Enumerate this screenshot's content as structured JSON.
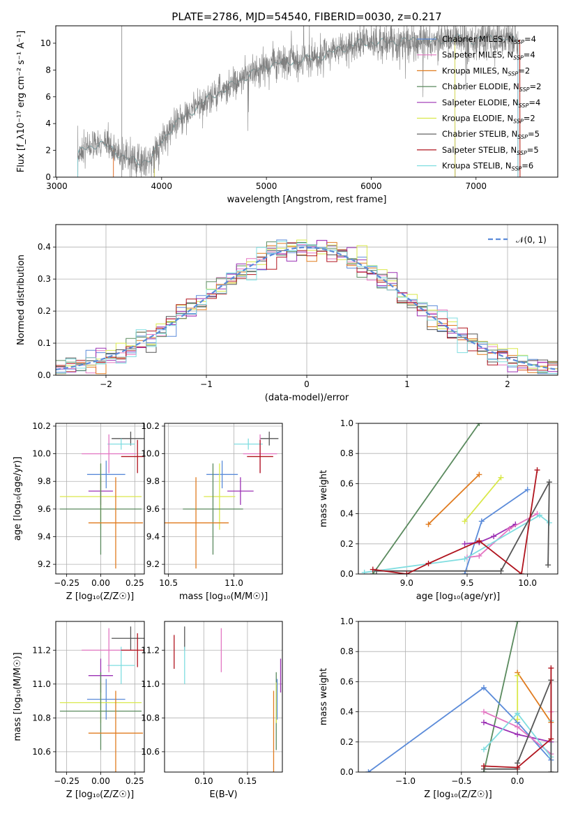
{
  "figure_title": "PLATE=2786, MJD=54540, FIBERID=0030, z=0.217",
  "colors": {
    "blue": "#5b8bd9",
    "pink": "#e377c2",
    "orange": "#e07b1f",
    "green": "#5a8a5e",
    "purple": "#9b30b4",
    "yellow": "#d9e84a",
    "gray": "#555555",
    "red": "#b0141e",
    "cyan": "#7fdde0",
    "normal": "#5b8bd9",
    "grid": "#b0b0b0",
    "spectrum": "#7f7f7f"
  },
  "chart_data": [
    {
      "id": "spectrum",
      "type": "line",
      "title": "PLATE=2786, MJD=54540, FIBERID=0030, z=0.217",
      "xlabel": "wavelength [Angstrom, rest frame]",
      "ylabel": "Flux [f_λ10⁻¹⁷ erg cm⁻² s⁻¹ A⁻¹]",
      "xlim": [
        2990,
        7780
      ],
      "ylim": [
        0,
        11.3
      ],
      "xticks": [
        3000,
        4000,
        5000,
        6000,
        7000
      ],
      "yticks": [
        0,
        2,
        4,
        6,
        8,
        10
      ],
      "legend_position": "upper-right",
      "legend": [
        {
          "label": "Chabrier MILES, N",
          "sub": "SSP",
          "suffix": "=4",
          "color": "blue"
        },
        {
          "label": "Salpeter MILES, N",
          "sub": "SSP",
          "suffix": "=4",
          "color": "pink"
        },
        {
          "label": "Kroupa MILES, N",
          "sub": "SSP",
          "suffix": "=2",
          "color": "orange"
        },
        {
          "label": "Chabrier ELODIE, N",
          "sub": "SSP",
          "suffix": "=2",
          "color": "green"
        },
        {
          "label": "Salpeter ELODIE, N",
          "sub": "SSP",
          "suffix": "=4",
          "color": "purple"
        },
        {
          "label": "Kroupa ELODIE, N",
          "sub": "SSP",
          "suffix": "=2",
          "color": "yellow"
        },
        {
          "label": "Chabrier STELIB, N",
          "sub": "SSP",
          "suffix": "=5",
          "color": "gray"
        },
        {
          "label": "Salpeter STELIB, N",
          "sub": "SSP",
          "suffix": "=5",
          "color": "red"
        },
        {
          "label": "Kroupa STELIB, N",
          "sub": "SSP",
          "suffix": "=6",
          "color": "cyan"
        }
      ],
      "model_coverage": [
        {
          "color": "blue",
          "start": 3200,
          "end": 7400
        },
        {
          "color": "pink",
          "start": 3540,
          "end": 7400
        },
        {
          "color": "orange",
          "start": 3540,
          "end": 7420
        },
        {
          "color": "green",
          "start": 3930,
          "end": 6800
        },
        {
          "color": "purple",
          "start": 3930,
          "end": 6800
        },
        {
          "color": "yellow",
          "start": 3930,
          "end": 6800
        },
        {
          "color": "gray",
          "start": 3200,
          "end": 7400
        },
        {
          "color": "red",
          "start": 3200,
          "end": 7420
        },
        {
          "color": "cyan",
          "start": 3200,
          "end": 7400
        }
      ],
      "continuum_x": [
        3200,
        3250,
        3300,
        3400,
        3500,
        3560,
        3620,
        3700,
        3800,
        3900,
        3960,
        4000,
        4050,
        4100,
        4200,
        4300,
        4400,
        4500,
        4600,
        4700,
        4800,
        4900,
        5000,
        5100,
        5200,
        5300,
        5400,
        5500,
        5600,
        5700,
        5800,
        5900,
        6000,
        6100,
        6200,
        6300,
        6400,
        6500,
        6600,
        6700,
        6800,
        6900,
        7000,
        7100,
        7200,
        7300,
        7400
      ],
      "continuum_y": [
        1.5,
        2.2,
        2.3,
        2.4,
        2.3,
        2.0,
        1.5,
        1.3,
        1.2,
        1.3,
        2.2,
        2.7,
        3.2,
        3.7,
        4.4,
        5.0,
        5.6,
        6.2,
        6.5,
        7.0,
        7.5,
        7.9,
        8.3,
        8.5,
        8.6,
        8.7,
        8.8,
        9.0,
        9.2,
        9.6,
        9.8,
        10.0,
        10.1,
        10.0,
        10.1,
        10.2,
        10.2,
        10.3,
        10.1,
        10.2,
        10.4,
        10.3,
        10.2,
        10.4,
        10.4,
        10.3,
        10.3
      ]
    },
    {
      "id": "residuals",
      "type": "histogram",
      "xlabel": "(data-model)/error",
      "ylabel": "Normed distribution",
      "xlim": [
        -2.5,
        2.5
      ],
      "ylim": [
        0,
        0.47
      ],
      "xticks": [
        -2,
        -1,
        0,
        1,
        2
      ],
      "yticks": [
        0.0,
        0.1,
        0.2,
        0.3,
        0.4
      ],
      "bin_width": 0.1,
      "legend": [
        {
          "label": "𝒩(0, 1)",
          "color": "normal",
          "style": "dashed"
        }
      ],
      "series_colors": [
        "blue",
        "pink",
        "orange",
        "green",
        "purple",
        "yellow",
        "gray",
        "red",
        "cyan"
      ]
    },
    {
      "id": "z-age",
      "type": "errorbar",
      "xlabel": "Z [log₁₀(Z/Z☉)]",
      "ylabel": "age  [log₁₀(age/yr)]",
      "xlim": [
        -0.33,
        0.32
      ],
      "ylim": [
        9.13,
        10.22
      ],
      "xticks": [
        -0.25,
        0.0,
        0.25
      ],
      "yticks": [
        9.2,
        9.4,
        9.6,
        9.8,
        10.0,
        10.2
      ],
      "points": [
        {
          "color": "gray",
          "x": 0.22,
          "xerr": 0.14,
          "y": 10.11,
          "yerr": 0.05
        },
        {
          "color": "cyan",
          "x": 0.15,
          "xerr": 0.1,
          "y": 10.07,
          "yerr": 0.04
        },
        {
          "color": "pink",
          "x": 0.06,
          "xerr": 0.2,
          "y": 10.0,
          "yerr": 0.14
        },
        {
          "color": "red",
          "x": 0.27,
          "xerr": 0.12,
          "y": 9.98,
          "yerr": 0.12
        },
        {
          "color": "blue",
          "x": 0.04,
          "xerr": 0.14,
          "y": 9.85,
          "yerr": 0.1
        },
        {
          "color": "purple",
          "x": 0.0,
          "xerr": 0.09,
          "y": 9.73,
          "yerr": 0.1
        },
        {
          "color": "yellow",
          "x": 0.0,
          "xerr": 0.3,
          "y": 9.69,
          "yerr": 0.24
        },
        {
          "color": "green",
          "x": 0.0,
          "xerr": 0.3,
          "y": 9.6,
          "yerr": 0.33
        },
        {
          "color": "orange",
          "x": 0.11,
          "xerr": 0.2,
          "y": 9.5,
          "yerr": 0.33
        }
      ]
    },
    {
      "id": "mass-age",
      "type": "errorbar",
      "xlabel": "mass [log₁₀(M/M☉)]",
      "ylabel": "",
      "xlim": [
        10.47,
        11.37
      ],
      "ylim": [
        9.13,
        10.22
      ],
      "xticks": [
        10.5,
        11.0
      ],
      "yticks": [
        9.2,
        9.4,
        9.6,
        9.8,
        10.0,
        10.2
      ],
      "points": [
        {
          "color": "gray",
          "x": 11.27,
          "xerr": 0.07,
          "y": 10.11,
          "yerr": 0.05
        },
        {
          "color": "cyan",
          "x": 11.11,
          "xerr": 0.11,
          "y": 10.07,
          "yerr": 0.04
        },
        {
          "color": "pink",
          "x": 11.2,
          "xerr": 0.13,
          "y": 10.0,
          "yerr": 0.14
        },
        {
          "color": "red",
          "x": 11.2,
          "xerr": 0.1,
          "y": 9.98,
          "yerr": 0.12
        },
        {
          "color": "blue",
          "x": 10.91,
          "xerr": 0.12,
          "y": 9.85,
          "yerr": 0.1
        },
        {
          "color": "purple",
          "x": 11.05,
          "xerr": 0.1,
          "y": 9.73,
          "yerr": 0.1
        },
        {
          "color": "yellow",
          "x": 10.89,
          "xerr": 0.12,
          "y": 9.69,
          "yerr": 0.24
        },
        {
          "color": "green",
          "x": 10.84,
          "xerr": 0.23,
          "y": 9.6,
          "yerr": 0.33
        },
        {
          "color": "orange",
          "x": 10.71,
          "xerr": 0.25,
          "y": 9.5,
          "yerr": 0.33
        }
      ]
    },
    {
      "id": "age-weight",
      "type": "line",
      "xlabel": "age  [log₁₀(age/yr)]",
      "ylabel": "mass weight",
      "xlim": [
        8.6,
        10.25
      ],
      "ylim": [
        0,
        1.0
      ],
      "xticks": [
        9.0,
        9.5,
        10.0
      ],
      "yticks": [
        0.0,
        0.2,
        0.4,
        0.6,
        0.8,
        1.0
      ],
      "series": [
        {
          "color": "green",
          "x": [
            8.72,
            9.6
          ],
          "y": [
            0.0,
            1.0
          ]
        },
        {
          "color": "orange",
          "x": [
            9.18,
            9.6
          ],
          "y": [
            0.33,
            0.66
          ]
        },
        {
          "color": "yellow",
          "x": [
            9.48,
            9.78
          ],
          "y": [
            0.35,
            0.64
          ]
        },
        {
          "color": "blue",
          "x": [
            9.48,
            9.62,
            10.0
          ],
          "y": [
            0.0,
            0.35,
            0.56
          ]
        },
        {
          "color": "purple",
          "x": [
            9.48,
            9.6,
            9.72,
            9.9
          ],
          "y": [
            0.2,
            0.21,
            0.25,
            0.33
          ]
        },
        {
          "color": "pink",
          "x": [
            9.5,
            9.6,
            9.85,
            10.08
          ],
          "y": [
            0.11,
            0.12,
            0.3,
            0.4
          ]
        },
        {
          "color": "cyan",
          "x": [
            8.65,
            9.48,
            10.1,
            10.18
          ],
          "y": [
            0.01,
            0.1,
            0.39,
            0.34
          ]
        },
        {
          "color": "gray",
          "x": [
            8.75,
            9.78,
            10.18,
            10.17
          ],
          "y": [
            0.02,
            0.02,
            0.61,
            0.06
          ]
        },
        {
          "color": "red",
          "x": [
            8.72,
            9.0,
            9.18,
            9.6,
            9.95,
            10.08
          ],
          "y": [
            0.03,
            0.0,
            0.07,
            0.22,
            0.0,
            0.69
          ]
        }
      ]
    },
    {
      "id": "z-mass",
      "type": "errorbar",
      "xlabel": "Z [log₁₀(Z/Z☉)]",
      "ylabel": "mass [log₁₀(M/M☉)]",
      "xlim": [
        -0.33,
        0.32
      ],
      "ylim": [
        10.48,
        11.37
      ],
      "xticks": [
        -0.25,
        0.0,
        0.25
      ],
      "yticks": [
        10.6,
        10.8,
        11.0,
        11.2
      ],
      "points": [
        {
          "color": "gray",
          "x": 0.22,
          "xerr": 0.14,
          "y": 11.27,
          "yerr": 0.07
        },
        {
          "color": "cyan",
          "x": 0.15,
          "xerr": 0.1,
          "y": 11.11,
          "yerr": 0.11
        },
        {
          "color": "pink",
          "x": 0.06,
          "xerr": 0.2,
          "y": 11.2,
          "yerr": 0.13
        },
        {
          "color": "red",
          "x": 0.27,
          "xerr": 0.12,
          "y": 11.2,
          "yerr": 0.1
        },
        {
          "color": "blue",
          "x": 0.04,
          "xerr": 0.14,
          "y": 10.91,
          "yerr": 0.12
        },
        {
          "color": "purple",
          "x": 0.0,
          "xerr": 0.09,
          "y": 11.05,
          "yerr": 0.1
        },
        {
          "color": "yellow",
          "x": 0.0,
          "xerr": 0.3,
          "y": 10.89,
          "yerr": 0.12
        },
        {
          "color": "green",
          "x": 0.0,
          "xerr": 0.3,
          "y": 10.84,
          "yerr": 0.23
        },
        {
          "color": "orange",
          "x": 0.11,
          "xerr": 0.2,
          "y": 10.71,
          "yerr": 0.25
        }
      ]
    },
    {
      "id": "ebv-mass",
      "type": "errorbar",
      "xlabel": "E(B-V)",
      "ylabel": "",
      "xlim": [
        0.055,
        0.19
      ],
      "ylim": [
        10.48,
        11.37
      ],
      "xticks": [
        0.1,
        0.15
      ],
      "yticks": [
        10.6,
        10.8,
        11.0,
        11.2
      ],
      "points": [
        {
          "color": "red",
          "x": 0.066,
          "xerr": 0,
          "y": 11.19,
          "yerr": 0.1
        },
        {
          "color": "gray",
          "x": 0.078,
          "xerr": 0,
          "y": 11.27,
          "yerr": 0.07
        },
        {
          "color": "cyan",
          "x": 0.078,
          "xerr": 0,
          "y": 11.11,
          "yerr": 0.11
        },
        {
          "color": "pink",
          "x": 0.12,
          "xerr": 0,
          "y": 11.2,
          "yerr": 0.13
        },
        {
          "color": "green",
          "x": 0.183,
          "xerr": 0,
          "y": 10.84,
          "yerr": 0.23
        },
        {
          "color": "yellow",
          "x": 0.183,
          "xerr": 0,
          "y": 10.89,
          "yerr": 0.12
        },
        {
          "color": "blue",
          "x": 0.184,
          "xerr": 0,
          "y": 10.91,
          "yerr": 0.12
        },
        {
          "color": "orange",
          "x": 0.18,
          "xerr": 0,
          "y": 10.71,
          "yerr": 0.25
        },
        {
          "color": "purple",
          "x": 0.188,
          "xerr": 0,
          "y": 11.05,
          "yerr": 0.1
        }
      ]
    },
    {
      "id": "z-weight",
      "type": "line",
      "xlabel": "Z [log₁₀(Z/Z☉)]",
      "ylabel": "mass weight",
      "xlim": [
        -1.42,
        0.36
      ],
      "ylim": [
        0,
        1.0
      ],
      "xticks": [
        -1.0,
        -0.5,
        0.0
      ],
      "yticks": [
        0.0,
        0.2,
        0.4,
        0.6,
        0.8,
        1.0
      ],
      "series": [
        {
          "color": "green",
          "x": [
            -0.3,
            0.0
          ],
          "y": [
            0.0,
            1.0
          ]
        },
        {
          "color": "blue",
          "x": [
            -1.33,
            -0.3,
            0.0,
            0.3
          ],
          "y": [
            0.0,
            0.56,
            0.33,
            0.08
          ]
        },
        {
          "color": "orange",
          "x": [
            0.0,
            0.3
          ],
          "y": [
            0.66,
            0.33
          ]
        },
        {
          "color": "yellow",
          "x": [
            0.0,
            0.0
          ],
          "y": [
            0.64,
            0.35
          ]
        },
        {
          "color": "purple",
          "x": [
            -0.3,
            0.0,
            0.3
          ],
          "y": [
            0.33,
            0.25,
            0.2
          ]
        },
        {
          "color": "pink",
          "x": [
            -0.3,
            0.0,
            0.3,
            0.3
          ],
          "y": [
            0.4,
            0.3,
            0.12,
            0.4
          ]
        },
        {
          "color": "cyan",
          "x": [
            -0.3,
            0.0,
            0.3,
            0.3
          ],
          "y": [
            0.15,
            0.39,
            0.1,
            0.34
          ]
        },
        {
          "color": "gray",
          "x": [
            -0.3,
            0.0,
            0.0,
            0.3,
            0.3
          ],
          "y": [
            0.02,
            0.02,
            0.06,
            0.61,
            0.0
          ]
        },
        {
          "color": "red",
          "x": [
            -0.3,
            0.0,
            0.3,
            0.3
          ],
          "y": [
            0.04,
            0.03,
            0.22,
            0.69
          ]
        }
      ]
    }
  ]
}
